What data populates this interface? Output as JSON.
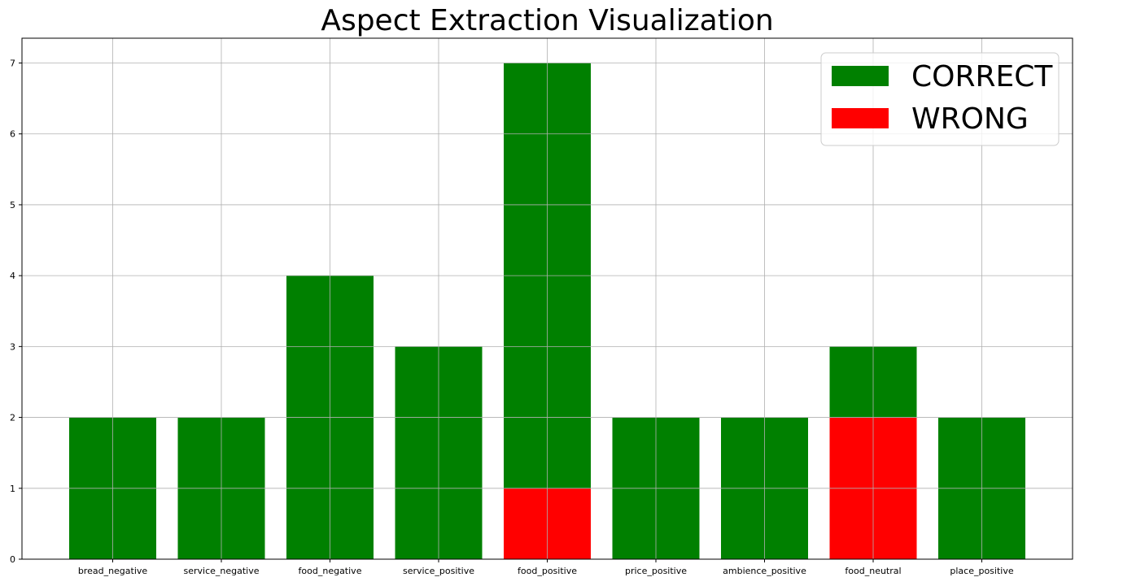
{
  "chart_data": {
    "type": "bar",
    "stacked": true,
    "title": "Aspect Extraction Visualization",
    "xlabel": "",
    "ylabel": "",
    "categories": [
      "bread_negative",
      "service_negative",
      "food_negative",
      "service_positive",
      "food_positive",
      "price_positive",
      "ambience_positive",
      "food_neutral",
      "place_positive"
    ],
    "series": [
      {
        "name": "WRONG",
        "color": "#ff0000",
        "values": [
          0,
          0,
          0,
          0,
          1,
          0,
          0,
          2,
          0
        ]
      },
      {
        "name": "CORRECT",
        "color": "#008000",
        "values": [
          2,
          2,
          4,
          3,
          6,
          2,
          2,
          1,
          2
        ]
      }
    ],
    "ylim": [
      0,
      7.35
    ],
    "yticks": [
      0,
      1,
      2,
      3,
      4,
      5,
      6,
      7
    ],
    "grid": true,
    "legend": {
      "position": "top-right",
      "entries": [
        "CORRECT",
        "WRONG"
      ]
    }
  }
}
